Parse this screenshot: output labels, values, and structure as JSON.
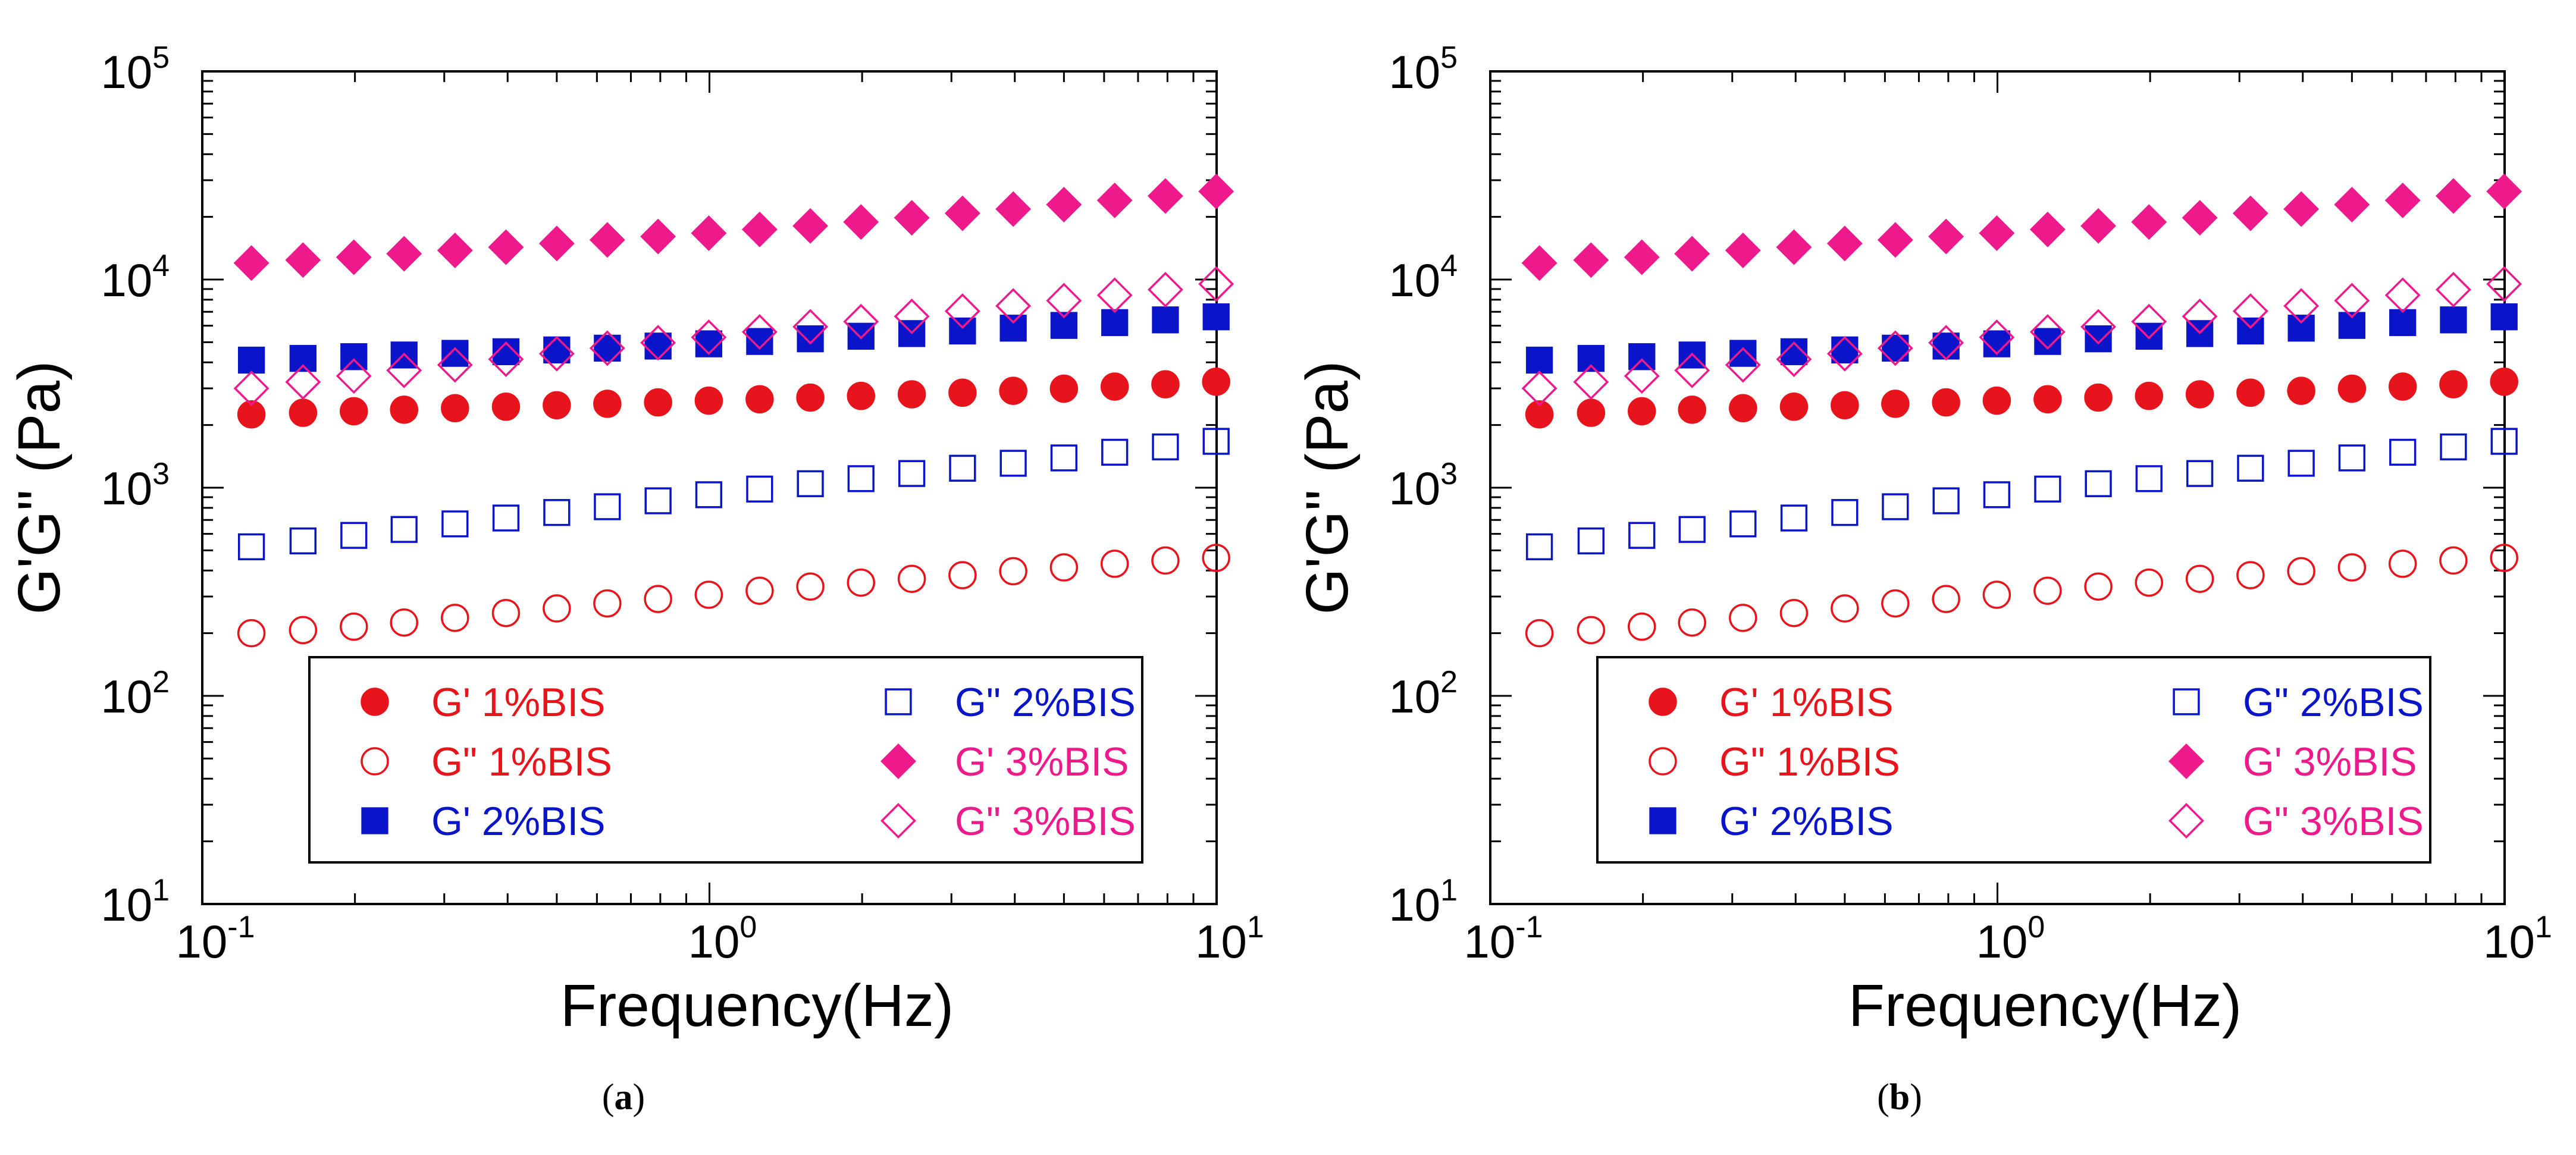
{
  "chart_data": [
    {
      "panel": "a",
      "caption_label": "a",
      "type": "scatter",
      "xscale": "log",
      "yscale": "log",
      "xlim": [
        0.1,
        10
      ],
      "ylim": [
        10,
        100000
      ],
      "xlabel": "Frequency(Hz)",
      "ylabel": "G'G\" (Pa)",
      "xtick_labels": [
        {
          "value": 0.1,
          "base": "10",
          "exp": "-1"
        },
        {
          "value": 1,
          "base": "10",
          "exp": "0"
        },
        {
          "value": 10,
          "base": "10",
          "exp": "1"
        }
      ],
      "ytick_labels": [
        {
          "value": 10,
          "base": "10",
          "exp": "1"
        },
        {
          "value": 100,
          "base": "10",
          "exp": "2"
        },
        {
          "value": 1000,
          "base": "10",
          "exp": "3"
        },
        {
          "value": 10000,
          "base": "10",
          "exp": "4"
        },
        {
          "value": 100000,
          "base": "10",
          "exp": "5"
        }
      ],
      "legend_position": "lower-center",
      "x": [
        0.125,
        0.158,
        0.199,
        0.25,
        0.315,
        0.397,
        0.5,
        0.629,
        0.792,
        0.997,
        1.256,
        1.581,
        1.99,
        2.506,
        3.155,
        3.972,
        5.0,
        6.296,
        7.926,
        9.979
      ],
      "series": [
        {
          "name": "G' 1%BIS",
          "marker": "circle",
          "fill": "filled",
          "color": "#e8141c",
          "values": [
            2250,
            2290,
            2330,
            2370,
            2410,
            2450,
            2490,
            2530,
            2570,
            2620,
            2660,
            2710,
            2760,
            2810,
            2860,
            2920,
            2990,
            3060,
            3140,
            3230
          ]
        },
        {
          "name": "G\" 1%BIS",
          "marker": "circle",
          "fill": "open",
          "color": "#e8141c",
          "values": [
            200,
            207,
            215,
            225,
            237,
            250,
            263,
            278,
            292,
            306,
            320,
            335,
            350,
            365,
            380,
            397,
            414,
            431,
            447,
            460
          ]
        },
        {
          "name": "G' 2%BIS",
          "marker": "square",
          "fill": "filled",
          "color": "#0a14c8",
          "values": [
            4100,
            4180,
            4260,
            4340,
            4420,
            4500,
            4590,
            4680,
            4790,
            4910,
            5040,
            5190,
            5340,
            5500,
            5660,
            5840,
            6020,
            6210,
            6400,
            6620
          ]
        },
        {
          "name": "G\" 2%BIS",
          "marker": "square",
          "fill": "open",
          "color": "#0a14c8",
          "values": [
            520,
            555,
            590,
            630,
            670,
            715,
            760,
            810,
            865,
            925,
            985,
            1045,
            1105,
            1170,
            1240,
            1310,
            1390,
            1480,
            1570,
            1670
          ]
        },
        {
          "name": "G' 3%BIS",
          "marker": "diamond",
          "fill": "filled",
          "color": "#ee1a8c",
          "values": [
            12000,
            12400,
            12800,
            13300,
            13800,
            14300,
            14900,
            15500,
            16100,
            16700,
            17400,
            18100,
            18900,
            19800,
            20800,
            21800,
            22900,
            24000,
            25200,
            26500
          ]
        },
        {
          "name": "G\" 3%BIS",
          "marker": "diamond",
          "fill": "open",
          "color": "#ee1a8c",
          "values": [
            3000,
            3220,
            3440,
            3660,
            3890,
            4140,
            4400,
            4680,
            4970,
            5280,
            5600,
            5930,
            6280,
            6650,
            7050,
            7470,
            7920,
            8410,
            8940,
            9520
          ]
        }
      ]
    },
    {
      "panel": "b",
      "caption_label": "b",
      "type": "scatter",
      "xscale": "log",
      "yscale": "log",
      "xlim": [
        0.1,
        10
      ],
      "ylim": [
        10,
        100000
      ],
      "xlabel": "Frequency(Hz)",
      "ylabel": "G'G\" (Pa)",
      "xtick_labels": [
        {
          "value": 0.1,
          "base": "10",
          "exp": "-1"
        },
        {
          "value": 1,
          "base": "10",
          "exp": "0"
        },
        {
          "value": 10,
          "base": "10",
          "exp": "1"
        }
      ],
      "ytick_labels": [
        {
          "value": 10,
          "base": "10",
          "exp": "1"
        },
        {
          "value": 100,
          "base": "10",
          "exp": "2"
        },
        {
          "value": 1000,
          "base": "10",
          "exp": "3"
        },
        {
          "value": 10000,
          "base": "10",
          "exp": "4"
        },
        {
          "value": 100000,
          "base": "10",
          "exp": "5"
        }
      ],
      "legend_position": "lower-center",
      "x": [
        0.125,
        0.158,
        0.199,
        0.25,
        0.315,
        0.397,
        0.5,
        0.629,
        0.792,
        0.997,
        1.256,
        1.581,
        1.99,
        2.506,
        3.155,
        3.972,
        5.0,
        6.296,
        7.926,
        9.979
      ],
      "series": [
        {
          "name": "G' 1%BIS",
          "marker": "circle",
          "fill": "filled",
          "color": "#e8141c",
          "values": [
            2250,
            2290,
            2330,
            2370,
            2410,
            2450,
            2490,
            2530,
            2570,
            2620,
            2660,
            2710,
            2760,
            2810,
            2860,
            2920,
            2990,
            3060,
            3140,
            3230
          ]
        },
        {
          "name": "G\" 1%BIS",
          "marker": "circle",
          "fill": "open",
          "color": "#e8141c",
          "values": [
            200,
            207,
            215,
            225,
            237,
            250,
            263,
            278,
            292,
            306,
            320,
            335,
            350,
            365,
            380,
            397,
            414,
            431,
            447,
            460
          ]
        },
        {
          "name": "G' 2%BIS",
          "marker": "square",
          "fill": "filled",
          "color": "#0a14c8",
          "values": [
            4100,
            4180,
            4260,
            4340,
            4420,
            4500,
            4590,
            4680,
            4790,
            4910,
            5040,
            5190,
            5340,
            5500,
            5660,
            5840,
            6020,
            6210,
            6400,
            6620
          ]
        },
        {
          "name": "G\" 2%BIS",
          "marker": "square",
          "fill": "open",
          "color": "#0a14c8",
          "values": [
            520,
            555,
            590,
            630,
            670,
            715,
            760,
            810,
            865,
            925,
            985,
            1045,
            1105,
            1170,
            1240,
            1310,
            1390,
            1480,
            1570,
            1670
          ]
        },
        {
          "name": "G' 3%BIS",
          "marker": "diamond",
          "fill": "filled",
          "color": "#ee1a8c",
          "values": [
            12000,
            12400,
            12800,
            13300,
            13800,
            14300,
            14900,
            15500,
            16100,
            16700,
            17400,
            18100,
            18900,
            19800,
            20800,
            21800,
            22900,
            24000,
            25200,
            26500
          ]
        },
        {
          "name": "G\" 3%BIS",
          "marker": "diamond",
          "fill": "open",
          "color": "#ee1a8c",
          "values": [
            3000,
            3220,
            3440,
            3660,
            3890,
            4140,
            4400,
            4680,
            4970,
            5280,
            5600,
            5930,
            6280,
            6650,
            7050,
            7470,
            7920,
            8410,
            8940,
            9520
          ]
        }
      ]
    }
  ]
}
